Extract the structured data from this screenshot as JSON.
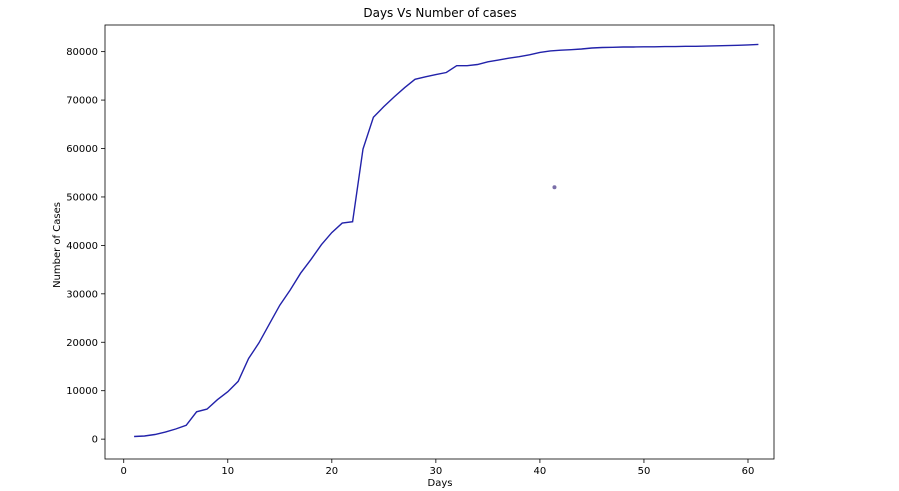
{
  "chart_data": {
    "type": "line",
    "title": "Days Vs Number of cases",
    "xlabel": "Days",
    "ylabel": "Number of Cases",
    "xlim": [
      -1.8,
      62.5
    ],
    "ylim": [
      -4100,
      85500
    ],
    "xticks": [
      0,
      10,
      20,
      30,
      40,
      50,
      60
    ],
    "yticks": [
      0,
      10000,
      20000,
      30000,
      40000,
      50000,
      60000,
      70000,
      80000
    ],
    "grid": false,
    "colors": {
      "line": "#2222aa",
      "marker": "#7a6ea8",
      "axes": "#000000"
    },
    "series": [
      {
        "name": "cases",
        "x": [
          1,
          2,
          3,
          4,
          5,
          6,
          7,
          8,
          9,
          10,
          11,
          12,
          13,
          14,
          15,
          16,
          17,
          18,
          19,
          20,
          21,
          22,
          23,
          24,
          25,
          26,
          27,
          28,
          29,
          30,
          31,
          32,
          33,
          34,
          35,
          36,
          37,
          38,
          39,
          40,
          41,
          42,
          43,
          44,
          45,
          46,
          47,
          48,
          49,
          50,
          51,
          52,
          53,
          54,
          55,
          56,
          57,
          58,
          59,
          60,
          61
        ],
        "y": [
          550,
          650,
          950,
          1450,
          2100,
          2850,
          5650,
          6200,
          8150,
          9800,
          11950,
          16650,
          19900,
          23800,
          27650,
          30800,
          34250,
          37100,
          40150,
          42650,
          44600,
          44900,
          59900,
          66450,
          68650,
          70650,
          72550,
          74300,
          74800,
          75250,
          75700,
          77100,
          77100,
          77350,
          77900,
          78250,
          78650,
          78950,
          79350,
          79850,
          80150,
          80300,
          80400,
          80550,
          80750,
          80850,
          80900,
          80950,
          80950,
          81000,
          81000,
          81050,
          81050,
          81100,
          81100,
          81150,
          81200,
          81250,
          81300,
          81400,
          81500
        ]
      }
    ],
    "outlier_point": {
      "x": 41.4,
      "y": 52000
    }
  }
}
